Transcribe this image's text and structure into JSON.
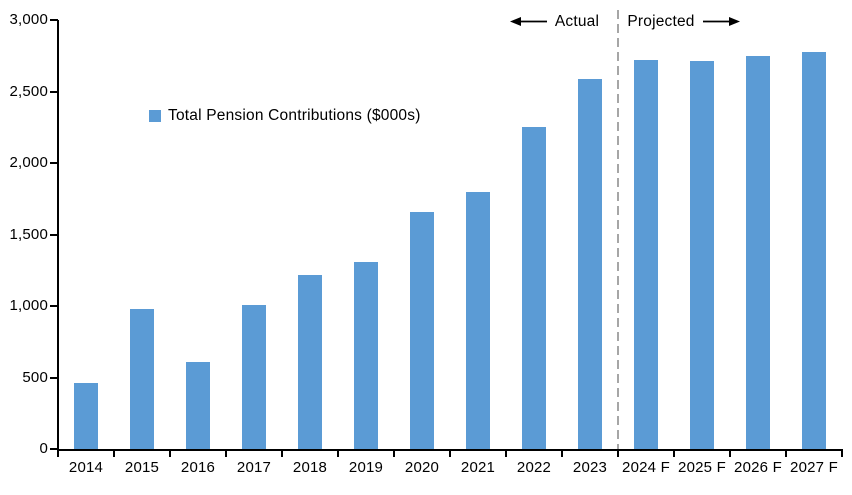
{
  "chart_data": {
    "type": "bar",
    "title": "",
    "legend": "Total Pension Contributions ($000s)",
    "categories": [
      "2014",
      "2015",
      "2016",
      "2017",
      "2018",
      "2019",
      "2020",
      "2021",
      "2022",
      "2023",
      "2024 F",
      "2025 F",
      "2026 F",
      "2027 F"
    ],
    "values": [
      465,
      980,
      605,
      1010,
      1220,
      1305,
      1660,
      1795,
      2255,
      2585,
      2720,
      2715,
      2745,
      2775
    ],
    "xlabel": "",
    "ylabel": "",
    "ylim": [
      0,
      3000
    ],
    "y_tick_step": 500,
    "y_tick_labels": [
      "0",
      "500",
      "1,000",
      "1,500",
      "2,000",
      "2,500",
      "3,000"
    ],
    "grid": false,
    "legend_position": "inside-upper-left",
    "bar_color": "#5B9BD5",
    "divider_boundary": 10,
    "annotations": {
      "actual_label": "Actual",
      "projected_label": "Projected"
    }
  },
  "colors": {
    "bar": "#5B9BD5",
    "divider": "#A6A6A6",
    "axis": "#000000",
    "text": "#000000"
  }
}
